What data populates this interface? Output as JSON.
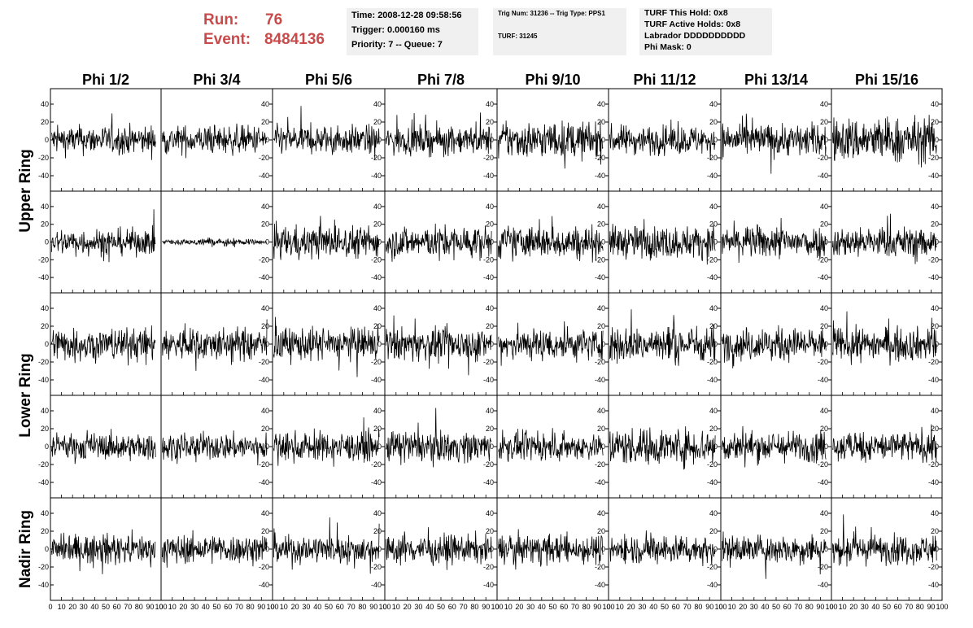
{
  "header": {
    "run_label": "Run:",
    "run_value": "76",
    "event_label": "Event:",
    "event_value": "8484136",
    "time": "Time: 2008-12-28 09:58:56",
    "trigger": "Trigger: 0.000160 ms",
    "priority": "Priority: 7 -- Queue: 7",
    "trig_num": "Trig Num: 31236 -- Trig Type: PPS1",
    "turf": "TURF: 31245",
    "turf_this_hold": "TURF This Hold: 0x8",
    "turf_active_holds": "TURF Active Holds: 0x8",
    "labrador": "Labrador DDDDDDDDDD",
    "phi_mask": "Phi Mask: 0"
  },
  "colors": {
    "accent": "#c94a4a",
    "info_bg": "#f0f0f0",
    "trace": "#000000"
  },
  "chart_data": {
    "type": "line",
    "columns": [
      "Phi 1/2",
      "Phi 3/4",
      "Phi 5/6",
      "Phi 7/8",
      "Phi 9/10",
      "Phi 11/12",
      "Phi 13/14",
      "Phi 15/16"
    ],
    "rows": [
      "Upper Ring",
      "Lower Ring",
      "Nadir Ring"
    ],
    "row_label_spans": [
      [
        0,
        1
      ],
      [
        2,
        3
      ],
      [
        4,
        4
      ]
    ],
    "panel_rows": 5,
    "xlim": [
      0,
      100
    ],
    "x_ticks": [
      "0",
      "10",
      "20",
      "30",
      "40",
      "50",
      "60",
      "70",
      "80",
      "90",
      "100"
    ],
    "ylim": [
      -50,
      50
    ],
    "y_ticks": [
      "40",
      "20",
      "0",
      "-20",
      "-40"
    ],
    "amplitude": [
      [
        14,
        14,
        14,
        14,
        18,
        14,
        16,
        22
      ],
      [
        13,
        3,
        16,
        16,
        16,
        16,
        16,
        15
      ],
      [
        16,
        16,
        16,
        16,
        16,
        18,
        16,
        16
      ],
      [
        13,
        13,
        14,
        15,
        13,
        18,
        15,
        15
      ],
      [
        14,
        14,
        14,
        14,
        14,
        14,
        14,
        14
      ]
    ],
    "note": "waveform traces are noise-like; values approximated"
  }
}
